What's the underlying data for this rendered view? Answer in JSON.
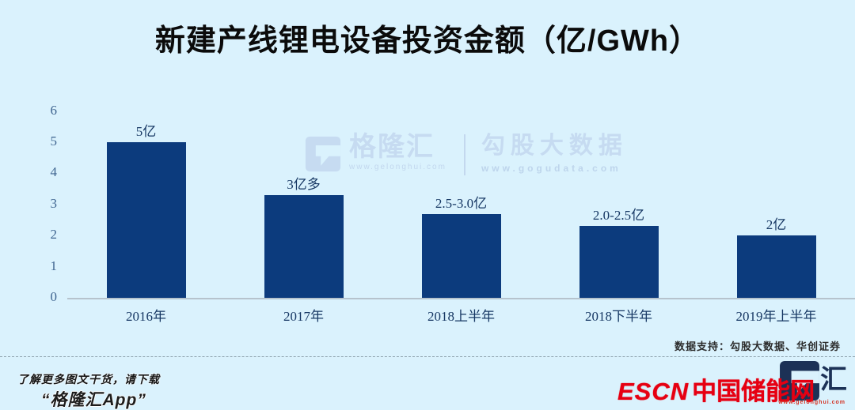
{
  "page": {
    "background": "#daf2fd"
  },
  "title": "新建产线锂电设备投资金额（亿/GWh）",
  "chart_data": {
    "type": "bar",
    "title": "新建产线锂电设备投资金额（亿/GWh）",
    "categories": [
      "2016年",
      "2017年",
      "2018上半年",
      "2018下半年",
      "2019年上半年"
    ],
    "values": [
      5,
      3.3,
      2.7,
      2.3,
      2
    ],
    "bar_labels": [
      "5亿",
      "3亿多",
      "2.5-3.0亿",
      "2.0-2.5亿",
      "2亿"
    ],
    "xlabel": "",
    "ylabel": "",
    "ylim": [
      0,
      6
    ],
    "yticks": [
      0,
      1,
      2,
      3,
      4,
      5,
      6
    ],
    "grid": false,
    "legend_position": "none",
    "bar_color": "#0c3b7d",
    "axis_text_color": "#3f6590",
    "label_text_color": "#173864"
  },
  "watermark": {
    "logo_icon": "gelonghui-g-logo",
    "brand": "格隆汇",
    "brand_url": "www.gelonghui.com",
    "product": "勾股大数据",
    "product_url": "www.gogudata.com"
  },
  "footer": {
    "data_support": "数据支持：勾股大数据、华创证券",
    "promo_line1": "了解更多图文干货，请下载",
    "promo_line2": "“格隆汇App”",
    "escn_en": "ESCN",
    "escn_cn": "中国储能网",
    "escn_behind_brand": "汇",
    "escn_url": "www.gelonghui.com"
  },
  "colors": {
    "background": "#daf2fd",
    "bar": "#0c3b7d",
    "watermark": "#c6dbf1",
    "escn_red": "#e60012",
    "baseline": "#b6c3cd"
  }
}
